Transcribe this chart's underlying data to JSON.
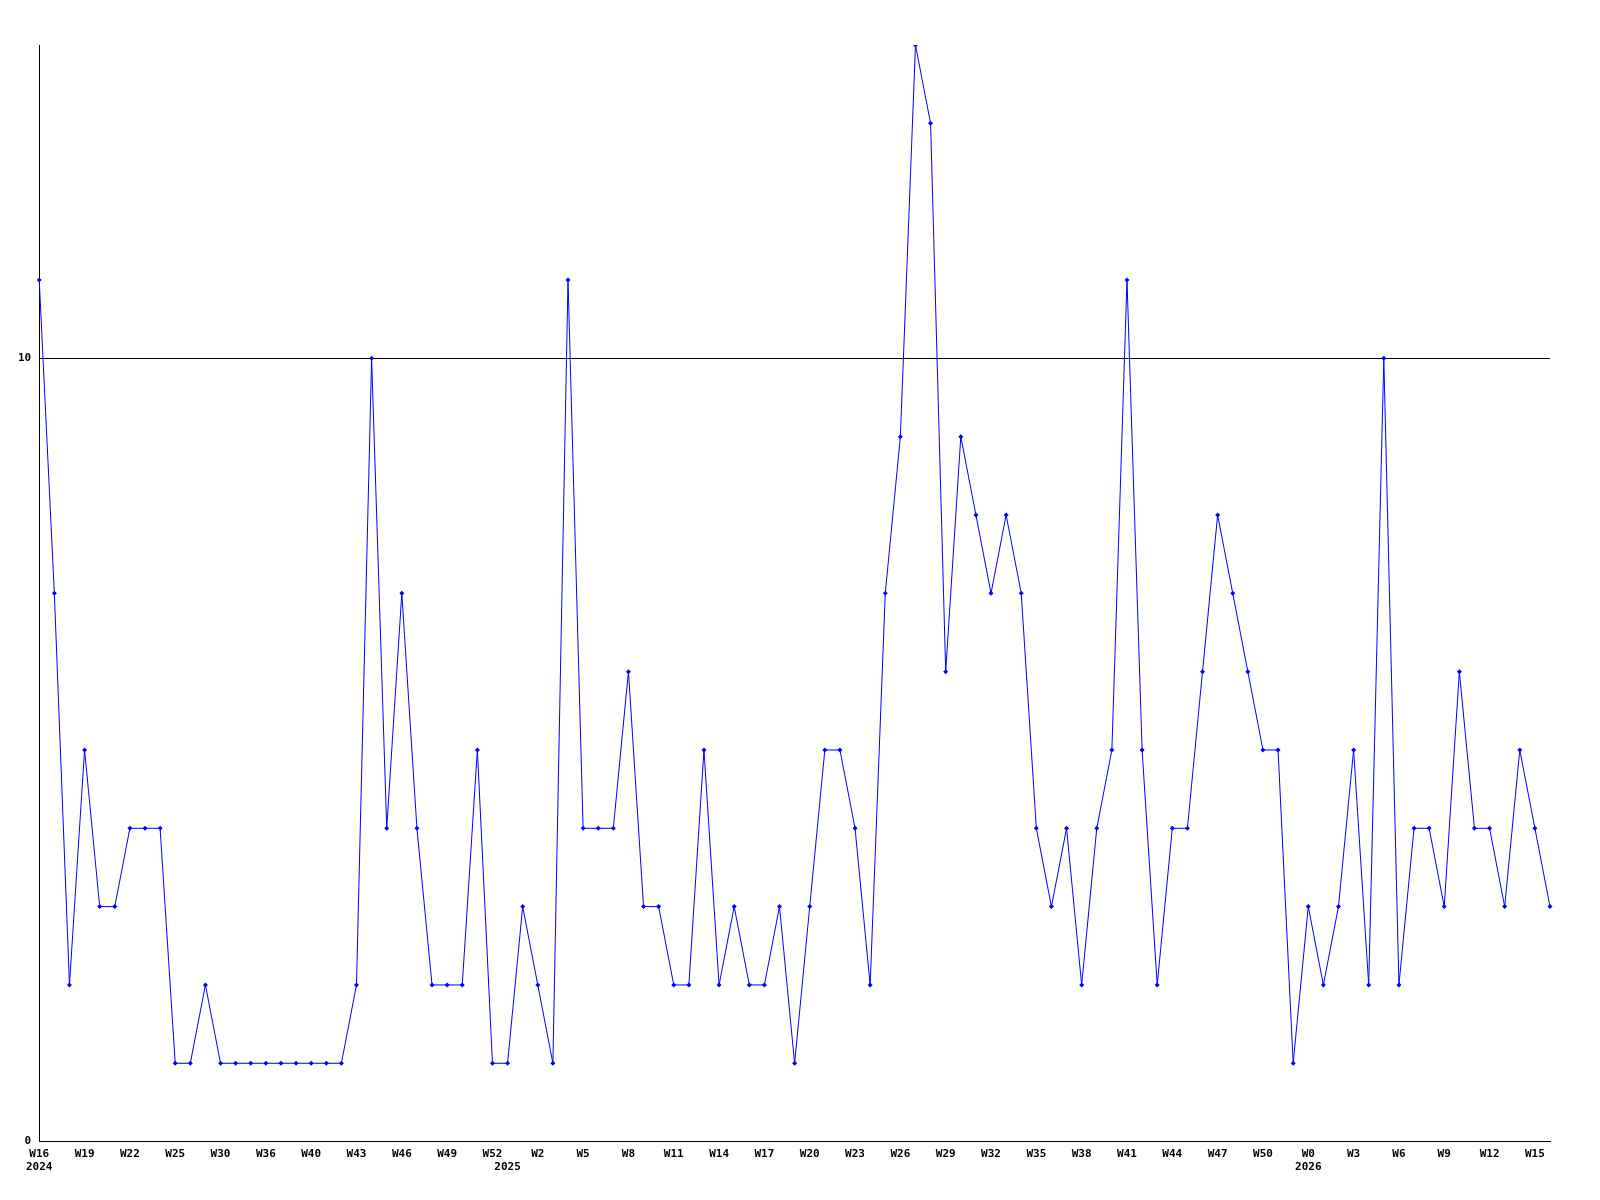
{
  "chart_data": {
    "type": "line",
    "categories": [
      "W16\n2024",
      null,
      null,
      "W19",
      null,
      null,
      "W22",
      null,
      null,
      "W25",
      null,
      null,
      "W30",
      null,
      null,
      "W36",
      null,
      null,
      "W40",
      null,
      null,
      "W43",
      null,
      null,
      "W46",
      null,
      null,
      "W49",
      null,
      null,
      "W52",
      "\n2025",
      null,
      "W2",
      null,
      null,
      "W5",
      null,
      null,
      "W8",
      null,
      null,
      "W11",
      null,
      null,
      "W14",
      null,
      null,
      "W17",
      null,
      null,
      "W20",
      null,
      null,
      "W23",
      null,
      null,
      "W26",
      null,
      null,
      "W29",
      null,
      null,
      "W32",
      null,
      null,
      "W35",
      null,
      null,
      "W38",
      null,
      null,
      "W41",
      null,
      null,
      "W44",
      null,
      null,
      "W47",
      null,
      null,
      "W50",
      null,
      null,
      "W0\n2026",
      null,
      null,
      "W3",
      null,
      null,
      "W6",
      null,
      null,
      "W9",
      null,
      null,
      "W12",
      null,
      null,
      "W15",
      null
    ],
    "series": [
      {
        "color": "#0000ff",
        "values": [
          11,
          7,
          2,
          5,
          3,
          3,
          4,
          4,
          4,
          1,
          1,
          2,
          1,
          1,
          1,
          1,
          1,
          1,
          1,
          1,
          1,
          2,
          10,
          4,
          7,
          4,
          2,
          2,
          2,
          5,
          1,
          1,
          3,
          2,
          1,
          11,
          4,
          4,
          4,
          6,
          3,
          3,
          2,
          2,
          5,
          2,
          3,
          2,
          2,
          3,
          1,
          3,
          5,
          5,
          4,
          2,
          7,
          9,
          14,
          13,
          6,
          9,
          8,
          7,
          8,
          7,
          4,
          3,
          4,
          2,
          4,
          5,
          11,
          5,
          2,
          4,
          4,
          6,
          8,
          7,
          6,
          5,
          5,
          1,
          3,
          2,
          3,
          5,
          2,
          10,
          2,
          4,
          4,
          3,
          6,
          4,
          4,
          3,
          5,
          4,
          3
        ]
      }
    ],
    "ylim": [
      0,
      14
    ],
    "yticks": [
      0,
      10
    ],
    "grid": "y",
    "marker": "diamond",
    "line_style": "solid",
    "legend": false
  }
}
